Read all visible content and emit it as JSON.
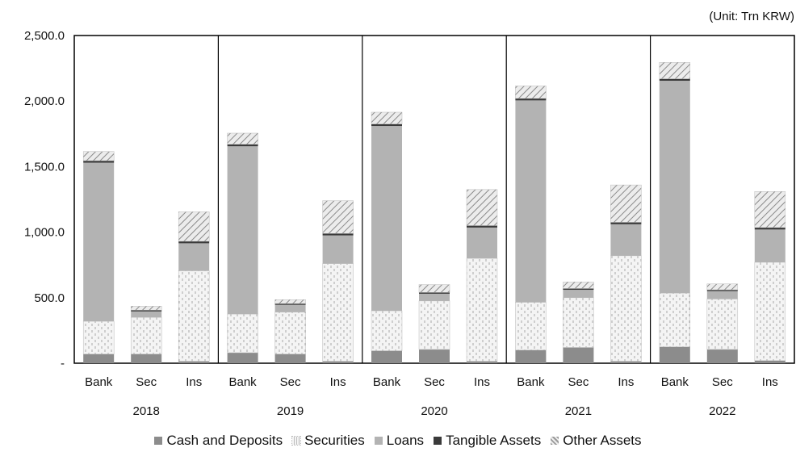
{
  "unit_label": "(Unit: Trn KRW)",
  "chart_data": {
    "type": "bar",
    "stacked": true,
    "ylim": [
      0,
      2500
    ],
    "y_ticks": [
      0,
      500,
      1000,
      1500,
      2000,
      2500
    ],
    "y_tick_labels": [
      "-",
      "500.0",
      "1,000.0",
      "1,500.0",
      "2,000.0",
      "2,500.0"
    ],
    "groups": [
      "2018",
      "2019",
      "2020",
      "2021",
      "2022"
    ],
    "categories": [
      "Bank",
      "Sec",
      "Ins"
    ],
    "series": [
      {
        "name": "Cash and Deposits",
        "color": "#8c8c8c",
        "pattern": "solid",
        "values": [
          [
            70,
            70,
            15
          ],
          [
            80,
            70,
            15
          ],
          [
            95,
            105,
            15
          ],
          [
            100,
            120,
            15
          ],
          [
            125,
            105,
            20
          ]
        ]
      },
      {
        "name": "Securities",
        "color": "#f2f2f2",
        "pattern": "dashes",
        "values": [
          [
            250,
            280,
            690
          ],
          [
            295,
            320,
            745
          ],
          [
            305,
            370,
            785
          ],
          [
            365,
            380,
            805
          ],
          [
            410,
            385,
            750
          ]
        ]
      },
      {
        "name": "Loans",
        "color": "#b3b3b3",
        "pattern": "solid",
        "values": [
          [
            1210,
            45,
            210
          ],
          [
            1280,
            55,
            215
          ],
          [
            1410,
            55,
            235
          ],
          [
            1540,
            60,
            240
          ],
          [
            1620,
            60,
            250
          ]
        ]
      },
      {
        "name": "Tangible Assets",
        "color": "#3a3a3a",
        "pattern": "solid",
        "values": [
          [
            15,
            10,
            15
          ],
          [
            15,
            10,
            15
          ],
          [
            15,
            10,
            15
          ],
          [
            15,
            10,
            15
          ],
          [
            15,
            10,
            15
          ]
        ]
      },
      {
        "name": "Other Assets",
        "color": "#d9d9d9",
        "pattern": "hatch",
        "values": [
          [
            70,
            30,
            225
          ],
          [
            85,
            30,
            250
          ],
          [
            90,
            60,
            275
          ],
          [
            95,
            50,
            285
          ],
          [
            125,
            45,
            275
          ]
        ]
      }
    ]
  }
}
